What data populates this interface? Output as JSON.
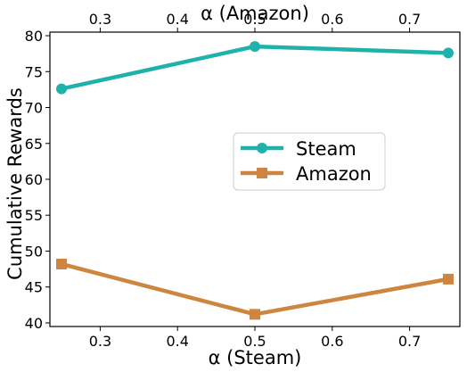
{
  "chart_data": {
    "type": "line",
    "xlabel_bottom": "α (Steam)",
    "xlabel_top": "α (Amazon)",
    "ylabel": "Cumulative Rewards",
    "x": [
      0.25,
      0.5,
      0.75
    ],
    "xlim": [
      0.235,
      0.765
    ],
    "ylim": [
      39.5,
      80.5
    ],
    "xticks": [
      0.3,
      0.4,
      0.5,
      0.6,
      0.7
    ],
    "xtick_labels": [
      "0.3",
      "0.4",
      "0.5",
      "0.6",
      "0.7"
    ],
    "yticks": [
      40,
      45,
      50,
      55,
      60,
      65,
      70,
      75,
      80
    ],
    "ytick_labels": [
      "40",
      "45",
      "50",
      "55",
      "60",
      "65",
      "70",
      "75",
      "80"
    ],
    "series": [
      {
        "name": "Steam",
        "values": [
          72.6,
          78.5,
          77.6
        ],
        "color": "#20b2aa",
        "marker": "circle"
      },
      {
        "name": "Amazon",
        "values": [
          48.2,
          41.2,
          46.1
        ],
        "color": "#cd853f",
        "marker": "square"
      }
    ],
    "legend_position": "center-right",
    "grid": false
  }
}
